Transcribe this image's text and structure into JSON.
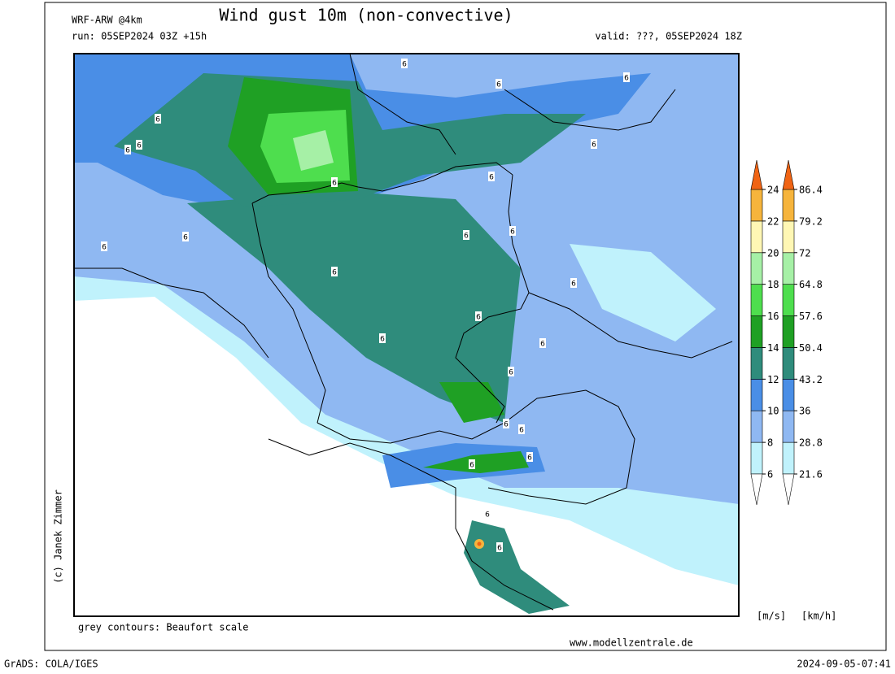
{
  "header": {
    "model": "WRF-ARW @4km",
    "title": "Wind gust 10m (non-convective)",
    "run": "run: 05SEP2024 03Z +15h",
    "valid": "valid: ???, 05SEP2024 18Z"
  },
  "map": {
    "contour_note": "grey contours: Beaufort scale",
    "contour_labels": [
      "6",
      "6",
      "6",
      "6",
      "6",
      "6",
      "6",
      "6",
      "6",
      "6",
      "6",
      "6",
      "6",
      "6",
      "6",
      "6",
      "6",
      "6",
      "6",
      "6",
      "6",
      "6",
      "6",
      "6",
      "6"
    ]
  },
  "colorbar": {
    "band_colors": [
      "#c0f2fc",
      "#8fb8f2",
      "#4a8ee6",
      "#2f8c7c",
      "#1fa024",
      "#4ede4e",
      "#a6f0a6",
      "#fff7b4",
      "#f6b43c"
    ],
    "over_color": "#f06414",
    "ms_ticks": [
      6,
      8,
      10,
      12,
      14,
      16,
      18,
      20,
      22,
      24
    ],
    "kmh_ticks": [
      21.6,
      28.8,
      36,
      43.2,
      50.4,
      57.6,
      64.8,
      72,
      79.2,
      86.4
    ],
    "ms_unit": "[m/s]",
    "kmh_unit": "[km/h]"
  },
  "footer": {
    "credit": "(c) Janek Zimmer",
    "website": "www.modellzentrale.de",
    "software": "GrADS: COLA/IGES",
    "timestamp": "2024-09-05-07:41"
  }
}
